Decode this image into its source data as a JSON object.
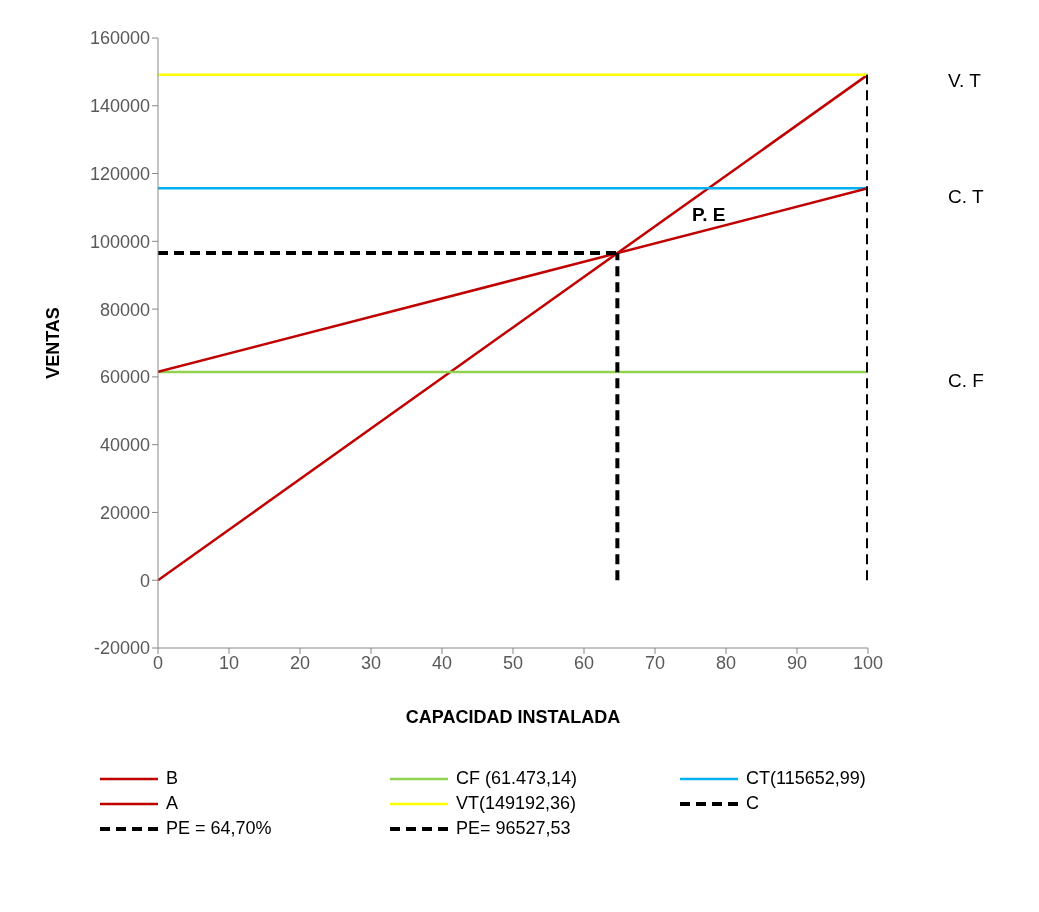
{
  "chart_data": {
    "type": "line",
    "xlabel": "CAPACIDAD INSTALADA",
    "ylabel": "VENTAS",
    "xlim": [
      0,
      100
    ],
    "xticks": [
      0,
      10,
      20,
      30,
      40,
      50,
      60,
      70,
      80,
      90,
      100
    ],
    "ylim": [
      -20000,
      160000
    ],
    "yticks": [
      -20000,
      0,
      20000,
      40000,
      60000,
      80000,
      100000,
      120000,
      140000,
      160000
    ],
    "grid": false,
    "legend": "bottom",
    "marker": "none",
    "series": [
      {
        "name": "B",
        "color": "#c00000",
        "x": [
          0,
          100
        ],
        "values": [
          0,
          149192.36
        ]
      },
      {
        "name": "CF (61.473,14)",
        "color": "#92d050",
        "x": [
          0,
          100
        ],
        "values": [
          61473.14,
          61473.14
        ]
      },
      {
        "name": "CT(115652,99)",
        "color": "#00b0f0",
        "x": [
          0,
          100
        ],
        "values": [
          115652.99,
          115652.99
        ]
      },
      {
        "name": "A",
        "color": "#c00000",
        "x": [
          0,
          100
        ],
        "values": [
          61473.14,
          115652.99
        ]
      },
      {
        "name": "VT(149192,36)",
        "color": "#ffff00",
        "x": [
          0,
          100
        ],
        "values": [
          149192.36,
          149192.36
        ]
      },
      {
        "name": "C",
        "color": "#000000",
        "line_style": "dashed",
        "x": [
          100,
          100
        ],
        "values": [
          0,
          149192.36
        ]
      },
      {
        "name": "PE = 64,70%",
        "color": "#000000",
        "line_style": "dashed",
        "x": [
          64.7,
          64.7
        ],
        "values": [
          0,
          96527.53
        ]
      },
      {
        "name": "PE= 96527,53",
        "color": "#000000",
        "line_style": "dashed",
        "x": [
          0,
          64.7
        ],
        "values": [
          96527.53,
          96527.53
        ]
      }
    ],
    "annotations": [
      "V. T",
      "C. T",
      "C. F",
      "P. E"
    ]
  }
}
